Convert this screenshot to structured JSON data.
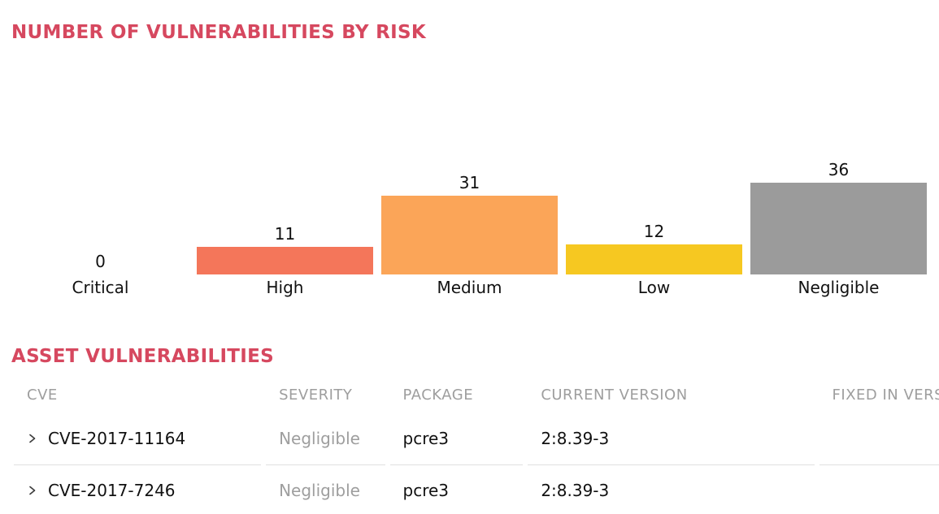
{
  "colors": {
    "accent_title": "#d6485f",
    "muted_text": "#9e9e9e",
    "divider": "#e0e0e0",
    "text": "#111111",
    "chevron": "#3d3d3d"
  },
  "chart_section": {
    "title": "NUMBER OF VULNERABILITIES BY RISK"
  },
  "chart_data": {
    "type": "bar",
    "title": "NUMBER OF VULNERABILITIES BY RISK",
    "categories": [
      "Critical",
      "High",
      "Medium",
      "Low",
      "Negligible"
    ],
    "values": [
      0,
      11,
      31,
      12,
      36
    ],
    "bar_colors": [
      "#e8485c",
      "#f4765a",
      "#fba558",
      "#f6c821",
      "#9b9b9b"
    ],
    "ylim": [
      0,
      36
    ],
    "xlabel": "",
    "ylabel": "",
    "grid": false,
    "legend": false,
    "axes_hidden": true,
    "value_labels_above_bars": true
  },
  "table_section": {
    "title": "ASSET VULNERABILITIES",
    "columns": [
      "CVE",
      "SEVERITY",
      "PACKAGE",
      "CURRENT VERSION",
      "FIXED IN VERSION"
    ],
    "rows": [
      {
        "cve": "CVE-2017-11164",
        "severity": "Negligible",
        "package": "pcre3",
        "current_version": "2:8.39-3",
        "fixed_in_version": ""
      },
      {
        "cve": "CVE-2017-7246",
        "severity": "Negligible",
        "package": "pcre3",
        "current_version": "2:8.39-3",
        "fixed_in_version": ""
      }
    ],
    "expand_icon": "chevron-right"
  }
}
